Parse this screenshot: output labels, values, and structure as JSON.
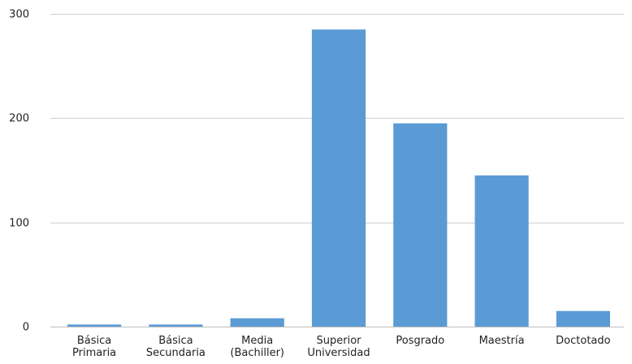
{
  "chart_data": {
    "type": "bar",
    "categories": [
      [
        "Básica",
        "Primaria"
      ],
      [
        "Básica",
        "Secundaria"
      ],
      [
        "Media",
        "(Bachiller)"
      ],
      [
        "Superior",
        "Universidad"
      ],
      [
        "Posgrado"
      ],
      [
        "Maestría"
      ],
      [
        "Doctotado"
      ]
    ],
    "values": [
      2,
      2,
      8,
      285,
      195,
      145,
      15
    ],
    "ylim": [
      0,
      300
    ],
    "yticks": [
      0,
      100,
      200,
      300
    ],
    "grid": true,
    "legend": "none",
    "bar_color": "#5b9bd5",
    "title": "",
    "xlabel": "",
    "ylabel": ""
  }
}
